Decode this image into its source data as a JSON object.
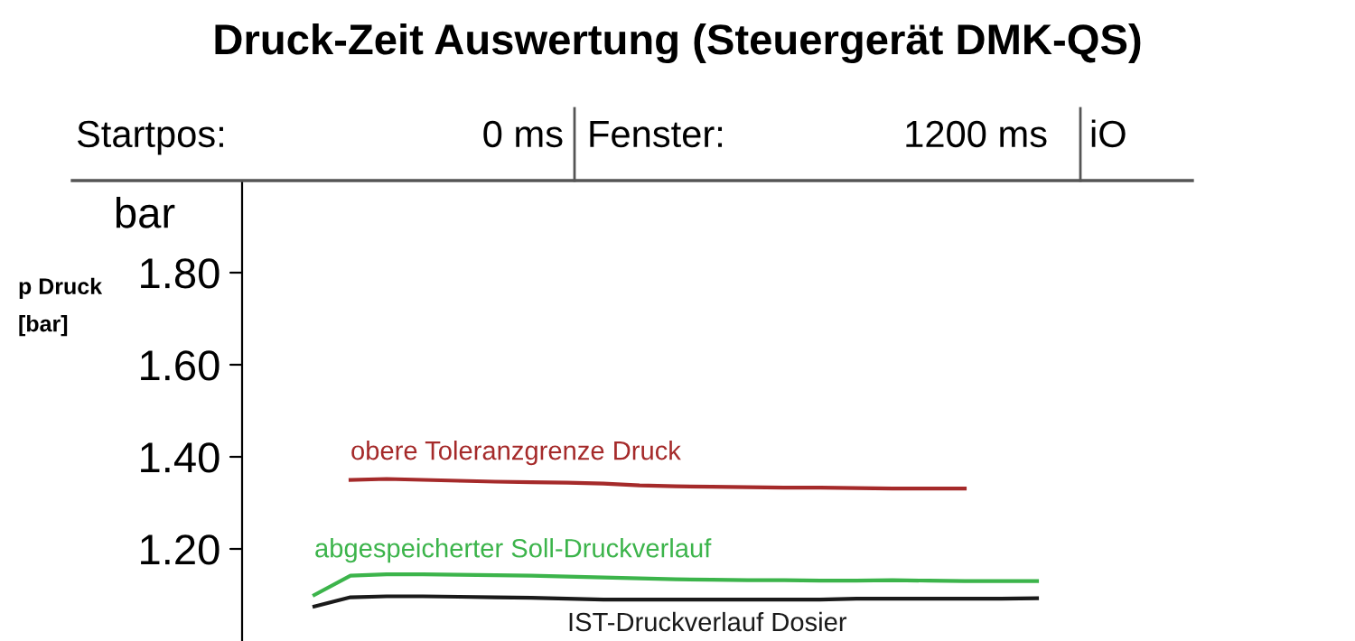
{
  "chart_data": {
    "type": "line",
    "title": "Druck-Zeit Auswertung (Steuergerät DMK-QS)",
    "ylabel": "p Druck\n[bar]",
    "annotations": [
      "Startpos:",
      "0 ms",
      "Fenster:",
      "1200 ms",
      "iO",
      "bar"
    ],
    "categories": [
      null,
      null,
      null,
      null,
      null,
      null,
      null,
      null,
      null,
      null,
      null,
      null,
      null,
      null,
      null,
      null,
      null,
      null,
      null,
      null,
      null,
      null,
      null,
      null,
      null,
      null,
      null
    ],
    "series": [
      {
        "name": "obere Toleranzgrenze Druck",
        "color": "#a52a2a",
        "values": [
          null,
          null,
          null,
          1.35,
          1.352,
          1.35,
          1.348,
          1.346,
          1.345,
          1.344,
          1.342,
          1.338,
          1.336,
          1.335,
          1.334,
          1.333,
          1.333,
          1.332,
          1.331,
          1.331,
          1.331,
          null,
          null,
          null,
          null,
          null,
          null
        ]
      },
      {
        "name": "abgespeicherter Soll-Druckverlauf",
        "color": "#3cb44b",
        "values": [
          null,
          null,
          1.1,
          1.142,
          1.145,
          1.145,
          1.144,
          1.143,
          1.142,
          1.14,
          1.138,
          1.136,
          1.134,
          1.133,
          1.132,
          1.132,
          1.131,
          1.131,
          1.132,
          1.131,
          1.13,
          1.13,
          1.13,
          null,
          null,
          null,
          null
        ]
      },
      {
        "name": "IST-Druckverlauf Dosier",
        "color": "#1a1a1a",
        "values": [
          null,
          null,
          1.075,
          1.095,
          1.097,
          1.097,
          1.096,
          1.095,
          1.094,
          1.092,
          1.09,
          1.09,
          1.09,
          1.09,
          1.09,
          1.09,
          1.09,
          1.092,
          1.092,
          1.092,
          1.092,
          1.092,
          1.093,
          null,
          null,
          null,
          null
        ]
      }
    ],
    "ylim": [
      1.0,
      2.0
    ],
    "yticks": [
      {
        "value": 1.8,
        "label": "1.80"
      },
      {
        "value": 1.6,
        "label": "1.60"
      },
      {
        "value": 1.4,
        "label": "1.40"
      },
      {
        "value": 1.2,
        "label": "1.20"
      }
    ],
    "tick_labels": "y",
    "grid": false,
    "legend": false,
    "marker": "none",
    "line_style": "solid"
  }
}
